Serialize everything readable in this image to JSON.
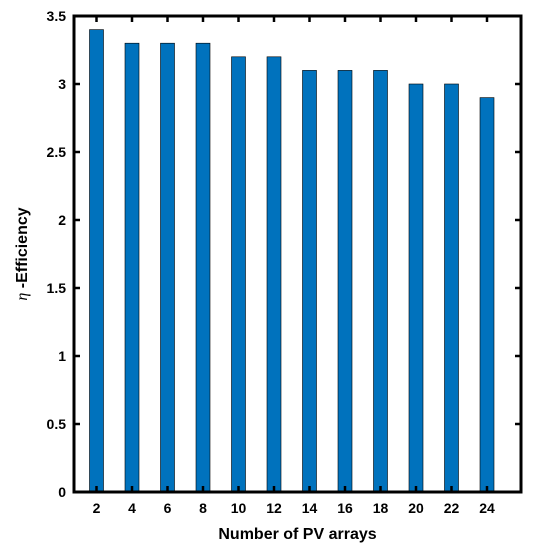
{
  "chart_data": {
    "type": "bar",
    "categories": [
      "2",
      "4",
      "6",
      "8",
      "10",
      "12",
      "14",
      "16",
      "18",
      "20",
      "22",
      "24"
    ],
    "values": [
      3.4,
      3.3,
      3.3,
      3.3,
      3.2,
      3.2,
      3.1,
      3.1,
      3.1,
      3.0,
      3.0,
      2.9
    ],
    "title": "",
    "xlabel": "Number of PV arrays",
    "ylabel_symbol": "η",
    "ylabel_text": " -Efficiency",
    "ylim": [
      0,
      3.5
    ],
    "yticks": [
      "0",
      "0.5",
      "1",
      "1.5",
      "2",
      "2.5",
      "3",
      "3.5"
    ],
    "grid": false,
    "bar_color": "#0072BD",
    "axis_color": "#000000"
  }
}
